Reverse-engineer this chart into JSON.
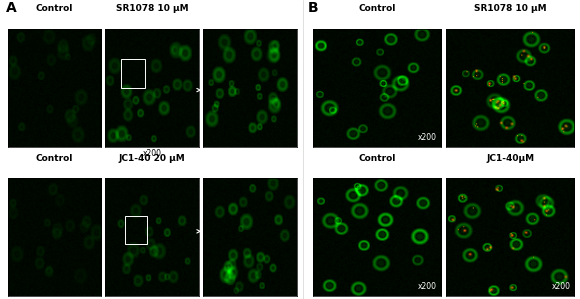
{
  "title_A": "A",
  "title_B": "B",
  "panel_A_row1_labels": [
    "Control",
    "SR1078 10 μM"
  ],
  "panel_A_row2_labels": [
    "Control",
    "JC1-40 20 μM"
  ],
  "panel_B_row1_labels": [
    "Control",
    "SR1078 10 μM"
  ],
  "panel_B_row2_labels": [
    "Control",
    "JC1-40μM"
  ],
  "mag_label": "x200",
  "bg_color": "#ffffff",
  "label_fontsize": 6.5,
  "section_label_fontsize": 10
}
